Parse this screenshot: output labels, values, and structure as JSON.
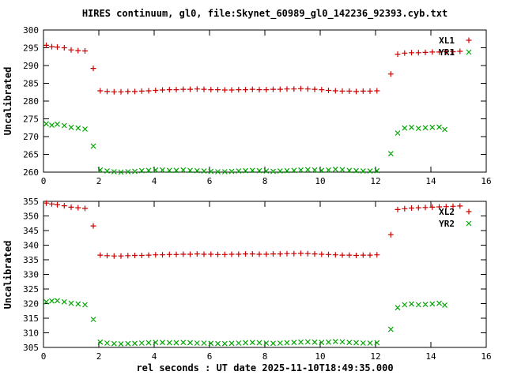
{
  "chart": {
    "title": "HIRES continuum, gl0, file:Skynet_60989_gl0_142236_92393.cyb.txt",
    "xlabel": "rel seconds : UT date 2025-11-10T18:49:35.000",
    "colors": {
      "red": "#cc0000",
      "green": "#00a400",
      "axis": "#000000",
      "background": "#ffffff"
    }
  },
  "chart_data": {
    "type": "scatter",
    "x_range": [
      0,
      16
    ],
    "x_ticks": [
      0,
      2,
      4,
      6,
      8,
      10,
      12,
      14,
      16
    ],
    "grid": false,
    "panels": [
      {
        "ylabel": "Uncalibrated",
        "y_range": [
          260,
          300
        ],
        "y_ticks": [
          260,
          265,
          270,
          275,
          280,
          285,
          290,
          295,
          300
        ],
        "legend_position": "top-right",
        "series": [
          {
            "name": "XL1",
            "marker": "plus",
            "color": "#cc0000",
            "points": [
              [
                0.1,
                295.7
              ],
              [
                0.3,
                295.3
              ],
              [
                0.5,
                295.2
              ],
              [
                0.75,
                295.0
              ],
              [
                1.0,
                294.4
              ],
              [
                1.25,
                294.2
              ],
              [
                1.5,
                294.1
              ],
              [
                1.8,
                289.2
              ],
              [
                2.05,
                282.9
              ],
              [
                2.3,
                282.7
              ],
              [
                2.55,
                282.6
              ],
              [
                2.8,
                282.6
              ],
              [
                3.05,
                282.7
              ],
              [
                3.3,
                282.7
              ],
              [
                3.55,
                282.8
              ],
              [
                3.8,
                282.9
              ],
              [
                4.05,
                283.0
              ],
              [
                4.3,
                283.1
              ],
              [
                4.55,
                283.2
              ],
              [
                4.8,
                283.2
              ],
              [
                5.05,
                283.3
              ],
              [
                5.3,
                283.3
              ],
              [
                5.55,
                283.4
              ],
              [
                5.8,
                283.3
              ],
              [
                6.05,
                283.2
              ],
              [
                6.3,
                283.2
              ],
              [
                6.55,
                283.1
              ],
              [
                6.8,
                283.1
              ],
              [
                7.05,
                283.2
              ],
              [
                7.3,
                283.2
              ],
              [
                7.55,
                283.3
              ],
              [
                7.8,
                283.2
              ],
              [
                8.05,
                283.2
              ],
              [
                8.3,
                283.3
              ],
              [
                8.55,
                283.3
              ],
              [
                8.8,
                283.4
              ],
              [
                9.05,
                283.4
              ],
              [
                9.3,
                283.5
              ],
              [
                9.55,
                283.4
              ],
              [
                9.8,
                283.3
              ],
              [
                10.05,
                283.2
              ],
              [
                10.3,
                283.0
              ],
              [
                10.55,
                282.9
              ],
              [
                10.8,
                282.8
              ],
              [
                11.05,
                282.8
              ],
              [
                11.3,
                282.7
              ],
              [
                11.55,
                282.8
              ],
              [
                11.8,
                282.8
              ],
              [
                12.05,
                282.9
              ],
              [
                12.55,
                287.6
              ],
              [
                12.8,
                293.2
              ],
              [
                13.05,
                293.5
              ],
              [
                13.3,
                293.6
              ],
              [
                13.55,
                293.6
              ],
              [
                13.8,
                293.7
              ],
              [
                14.05,
                293.8
              ],
              [
                14.3,
                293.8
              ],
              [
                14.55,
                293.9
              ],
              [
                14.8,
                293.9
              ],
              [
                15.05,
                294.0
              ]
            ]
          },
          {
            "name": "YR1",
            "marker": "cross",
            "color": "#00a400",
            "points": [
              [
                0.1,
                273.6
              ],
              [
                0.3,
                273.2
              ],
              [
                0.5,
                273.5
              ],
              [
                0.75,
                273.1
              ],
              [
                1.0,
                272.6
              ],
              [
                1.25,
                272.4
              ],
              [
                1.5,
                272.1
              ],
              [
                1.8,
                267.3
              ],
              [
                2.05,
                260.6
              ],
              [
                2.3,
                260.3
              ],
              [
                2.55,
                260.1
              ],
              [
                2.8,
                260.0
              ],
              [
                3.05,
                260.1
              ],
              [
                3.3,
                260.2
              ],
              [
                3.55,
                260.4
              ],
              [
                3.8,
                260.5
              ],
              [
                4.05,
                260.6
              ],
              [
                4.3,
                260.6
              ],
              [
                4.55,
                260.5
              ],
              [
                4.8,
                260.5
              ],
              [
                5.05,
                260.6
              ],
              [
                5.3,
                260.5
              ],
              [
                5.55,
                260.4
              ],
              [
                5.8,
                260.3
              ],
              [
                6.05,
                260.2
              ],
              [
                6.3,
                260.1
              ],
              [
                6.55,
                260.1
              ],
              [
                6.8,
                260.2
              ],
              [
                7.05,
                260.3
              ],
              [
                7.3,
                260.4
              ],
              [
                7.55,
                260.5
              ],
              [
                7.8,
                260.4
              ],
              [
                8.05,
                260.3
              ],
              [
                8.3,
                260.2
              ],
              [
                8.55,
                260.3
              ],
              [
                8.8,
                260.4
              ],
              [
                9.05,
                260.5
              ],
              [
                9.3,
                260.6
              ],
              [
                9.55,
                260.7
              ],
              [
                9.8,
                260.6
              ],
              [
                10.05,
                260.5
              ],
              [
                10.3,
                260.6
              ],
              [
                10.55,
                260.8
              ],
              [
                10.8,
                260.7
              ],
              [
                11.05,
                260.5
              ],
              [
                11.3,
                260.4
              ],
              [
                11.55,
                260.3
              ],
              [
                11.8,
                260.3
              ],
              [
                12.05,
                260.4
              ],
              [
                12.55,
                265.2
              ],
              [
                12.8,
                271.0
              ],
              [
                13.05,
                272.4
              ],
              [
                13.3,
                272.6
              ],
              [
                13.55,
                272.3
              ],
              [
                13.8,
                272.5
              ],
              [
                14.05,
                272.6
              ],
              [
                14.3,
                272.7
              ],
              [
                14.5,
                272.0
              ]
            ]
          }
        ]
      },
      {
        "ylabel": "Uncalibrated",
        "y_range": [
          305,
          355
        ],
        "y_ticks": [
          305,
          310,
          315,
          320,
          325,
          330,
          335,
          340,
          345,
          350,
          355
        ],
        "legend_position": "top-right",
        "series": [
          {
            "name": "XL2",
            "marker": "plus",
            "color": "#cc0000",
            "points": [
              [
                0.1,
                354.4
              ],
              [
                0.3,
                354.1
              ],
              [
                0.5,
                353.8
              ],
              [
                0.75,
                353.5
              ],
              [
                1.0,
                353.0
              ],
              [
                1.25,
                352.8
              ],
              [
                1.5,
                352.6
              ],
              [
                1.8,
                346.6
              ],
              [
                2.05,
                336.6
              ],
              [
                2.3,
                336.4
              ],
              [
                2.55,
                336.3
              ],
              [
                2.8,
                336.3
              ],
              [
                3.05,
                336.4
              ],
              [
                3.3,
                336.5
              ],
              [
                3.55,
                336.5
              ],
              [
                3.8,
                336.6
              ],
              [
                4.05,
                336.7
              ],
              [
                4.3,
                336.7
              ],
              [
                4.55,
                336.8
              ],
              [
                4.8,
                336.8
              ],
              [
                5.05,
                336.9
              ],
              [
                5.3,
                336.9
              ],
              [
                5.55,
                337.0
              ],
              [
                5.8,
                336.9
              ],
              [
                6.05,
                336.9
              ],
              [
                6.3,
                336.8
              ],
              [
                6.55,
                336.8
              ],
              [
                6.8,
                336.9
              ],
              [
                7.05,
                336.9
              ],
              [
                7.3,
                337.0
              ],
              [
                7.55,
                337.0
              ],
              [
                7.8,
                336.9
              ],
              [
                8.05,
                336.9
              ],
              [
                8.3,
                337.0
              ],
              [
                8.55,
                337.0
              ],
              [
                8.8,
                337.1
              ],
              [
                9.05,
                337.1
              ],
              [
                9.3,
                337.2
              ],
              [
                9.55,
                337.1
              ],
              [
                9.8,
                337.0
              ],
              [
                10.05,
                336.9
              ],
              [
                10.3,
                336.8
              ],
              [
                10.55,
                336.7
              ],
              [
                10.8,
                336.6
              ],
              [
                11.05,
                336.6
              ],
              [
                11.3,
                336.5
              ],
              [
                11.55,
                336.6
              ],
              [
                11.8,
                336.6
              ],
              [
                12.05,
                336.7
              ],
              [
                12.55,
                343.6
              ],
              [
                12.8,
                352.2
              ],
              [
                13.05,
                352.5
              ],
              [
                13.3,
                352.7
              ],
              [
                13.55,
                352.8
              ],
              [
                13.8,
                352.9
              ],
              [
                14.05,
                353.0
              ],
              [
                14.3,
                353.1
              ],
              [
                14.55,
                353.2
              ],
              [
                14.8,
                353.3
              ],
              [
                15.05,
                353.4
              ]
            ]
          },
          {
            "name": "YR2",
            "marker": "cross",
            "color": "#00a400",
            "points": [
              [
                0.1,
                320.6
              ],
              [
                0.3,
                320.9
              ],
              [
                0.5,
                321.0
              ],
              [
                0.75,
                320.6
              ],
              [
                1.0,
                320.1
              ],
              [
                1.25,
                319.9
              ],
              [
                1.5,
                319.6
              ],
              [
                1.8,
                314.6
              ],
              [
                2.05,
                306.8
              ],
              [
                2.3,
                306.5
              ],
              [
                2.55,
                306.3
              ],
              [
                2.8,
                306.2
              ],
              [
                3.05,
                306.3
              ],
              [
                3.3,
                306.4
              ],
              [
                3.55,
                306.5
              ],
              [
                3.8,
                306.6
              ],
              [
                4.05,
                306.7
              ],
              [
                4.3,
                306.7
              ],
              [
                4.55,
                306.6
              ],
              [
                4.8,
                306.6
              ],
              [
                5.05,
                306.7
              ],
              [
                5.3,
                306.6
              ],
              [
                5.55,
                306.5
              ],
              [
                5.8,
                306.5
              ],
              [
                6.05,
                306.4
              ],
              [
                6.3,
                306.3
              ],
              [
                6.55,
                306.3
              ],
              [
                6.8,
                306.4
              ],
              [
                7.05,
                306.5
              ],
              [
                7.3,
                306.6
              ],
              [
                7.55,
                306.7
              ],
              [
                7.8,
                306.6
              ],
              [
                8.05,
                306.5
              ],
              [
                8.3,
                306.4
              ],
              [
                8.55,
                306.5
              ],
              [
                8.8,
                306.6
              ],
              [
                9.05,
                306.7
              ],
              [
                9.3,
                306.8
              ],
              [
                9.55,
                306.9
              ],
              [
                9.8,
                306.8
              ],
              [
                10.05,
                306.7
              ],
              [
                10.3,
                306.8
              ],
              [
                10.55,
                307.0
              ],
              [
                10.8,
                306.9
              ],
              [
                11.05,
                306.7
              ],
              [
                11.3,
                306.6
              ],
              [
                11.55,
                306.5
              ],
              [
                11.8,
                306.5
              ],
              [
                12.05,
                306.6
              ],
              [
                12.55,
                311.2
              ],
              [
                12.8,
                318.6
              ],
              [
                13.05,
                319.6
              ],
              [
                13.3,
                319.9
              ],
              [
                13.55,
                319.6
              ],
              [
                13.8,
                319.7
              ],
              [
                14.05,
                319.9
              ],
              [
                14.3,
                320.1
              ],
              [
                14.5,
                319.5
              ]
            ]
          }
        ]
      }
    ]
  }
}
